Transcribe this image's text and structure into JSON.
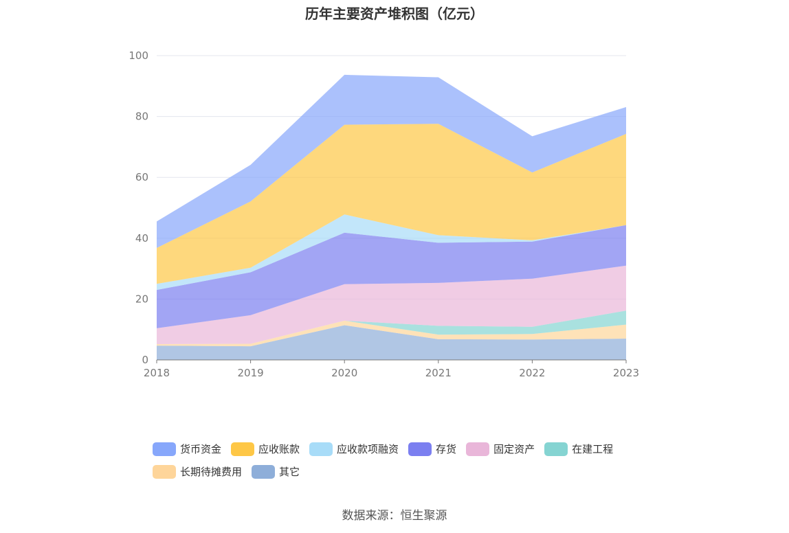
{
  "chart_data": {
    "type": "area",
    "stacked": true,
    "title": "历年主要资产堆积图（亿元）",
    "categories": [
      "2018",
      "2019",
      "2020",
      "2021",
      "2022",
      "2023"
    ],
    "ylim": [
      0,
      100
    ],
    "yticks": [
      0,
      20,
      40,
      60,
      80,
      100
    ],
    "grid": true,
    "legend_position": "bottom",
    "series": [
      {
        "name": "其它",
        "color": "#8eaed9",
        "values": [
          4.7,
          4.5,
          11.4,
          6.8,
          6.7,
          7.0
        ]
      },
      {
        "name": "长期待摊费用",
        "color": "#fed59a",
        "values": [
          0.5,
          0.8,
          1.5,
          1.5,
          1.8,
          4.6
        ]
      },
      {
        "name": "在建工程",
        "color": "#85d4d2",
        "values": [
          0.0,
          0.0,
          0.0,
          2.9,
          2.4,
          4.6
        ]
      },
      {
        "name": "固定资产",
        "color": "#e9b6d9",
        "values": [
          5.2,
          9.4,
          12.0,
          14.1,
          15.8,
          14.8
        ]
      },
      {
        "name": "存货",
        "color": "#7b7ff0",
        "values": [
          12.6,
          14.1,
          16.9,
          13.2,
          12.2,
          13.3
        ]
      },
      {
        "name": "应收款项融资",
        "color": "#a8dcf8",
        "values": [
          2.0,
          1.5,
          6.0,
          2.5,
          0.4,
          0.0
        ]
      },
      {
        "name": "应收账款",
        "color": "#fec746",
        "values": [
          11.8,
          21.8,
          29.5,
          36.6,
          22.3,
          30.0
        ]
      },
      {
        "name": "货币资金",
        "color": "#87a7fb",
        "values": [
          8.7,
          12.0,
          16.4,
          15.3,
          11.9,
          8.8
        ]
      }
    ]
  },
  "legend": {
    "row1": [
      "货币资金",
      "应收账款",
      "应收款项融资",
      "存货",
      "固定资产",
      "在建工程"
    ],
    "row2": [
      "长期待摊费用",
      "其它"
    ]
  },
  "source": "数据来源：恒生聚源"
}
